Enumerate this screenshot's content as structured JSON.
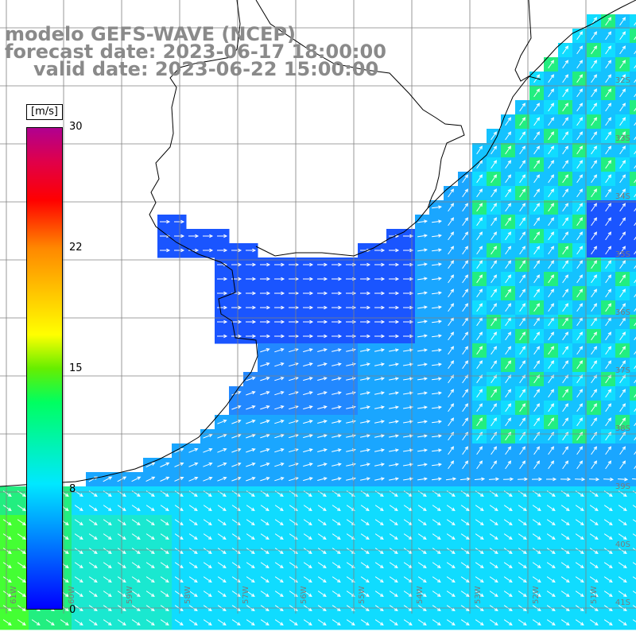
{
  "header": {
    "model": "modelo GEFS-WAVE (NCEP)",
    "forecast": "forecast date: 2023-06-17 18:00:00",
    "valid": "valid date: 2023-06-22 15:00:00"
  },
  "colorbar": {
    "unit": "[m/s]",
    "ticks": [
      "30",
      "22",
      "15",
      "8",
      "0"
    ],
    "colors": [
      "#0000ff",
      "#0090ff",
      "#00e8ff",
      "#00ff60",
      "#ffff00",
      "#ff8800",
      "#ff0000",
      "#b00090"
    ]
  },
  "map": {
    "lat_labels": [
      "32S",
      "33S",
      "34S",
      "35S",
      "36S",
      "37S",
      "38S",
      "39S",
      "40S",
      "41S"
    ],
    "lon_labels": [
      "61W",
      "60W",
      "59W",
      "58W",
      "57W",
      "56W",
      "55W",
      "54W",
      "53W",
      "52W",
      "51W"
    ],
    "ocean_colors": [
      "#1a55ff",
      "#2288ff",
      "#1aa6ff",
      "#14c2ff",
      "#10dcff",
      "#1ae8d0",
      "#22ee80",
      "#44ff33"
    ],
    "land_color": "#ffffff",
    "arrow_color": "#ffffff"
  }
}
